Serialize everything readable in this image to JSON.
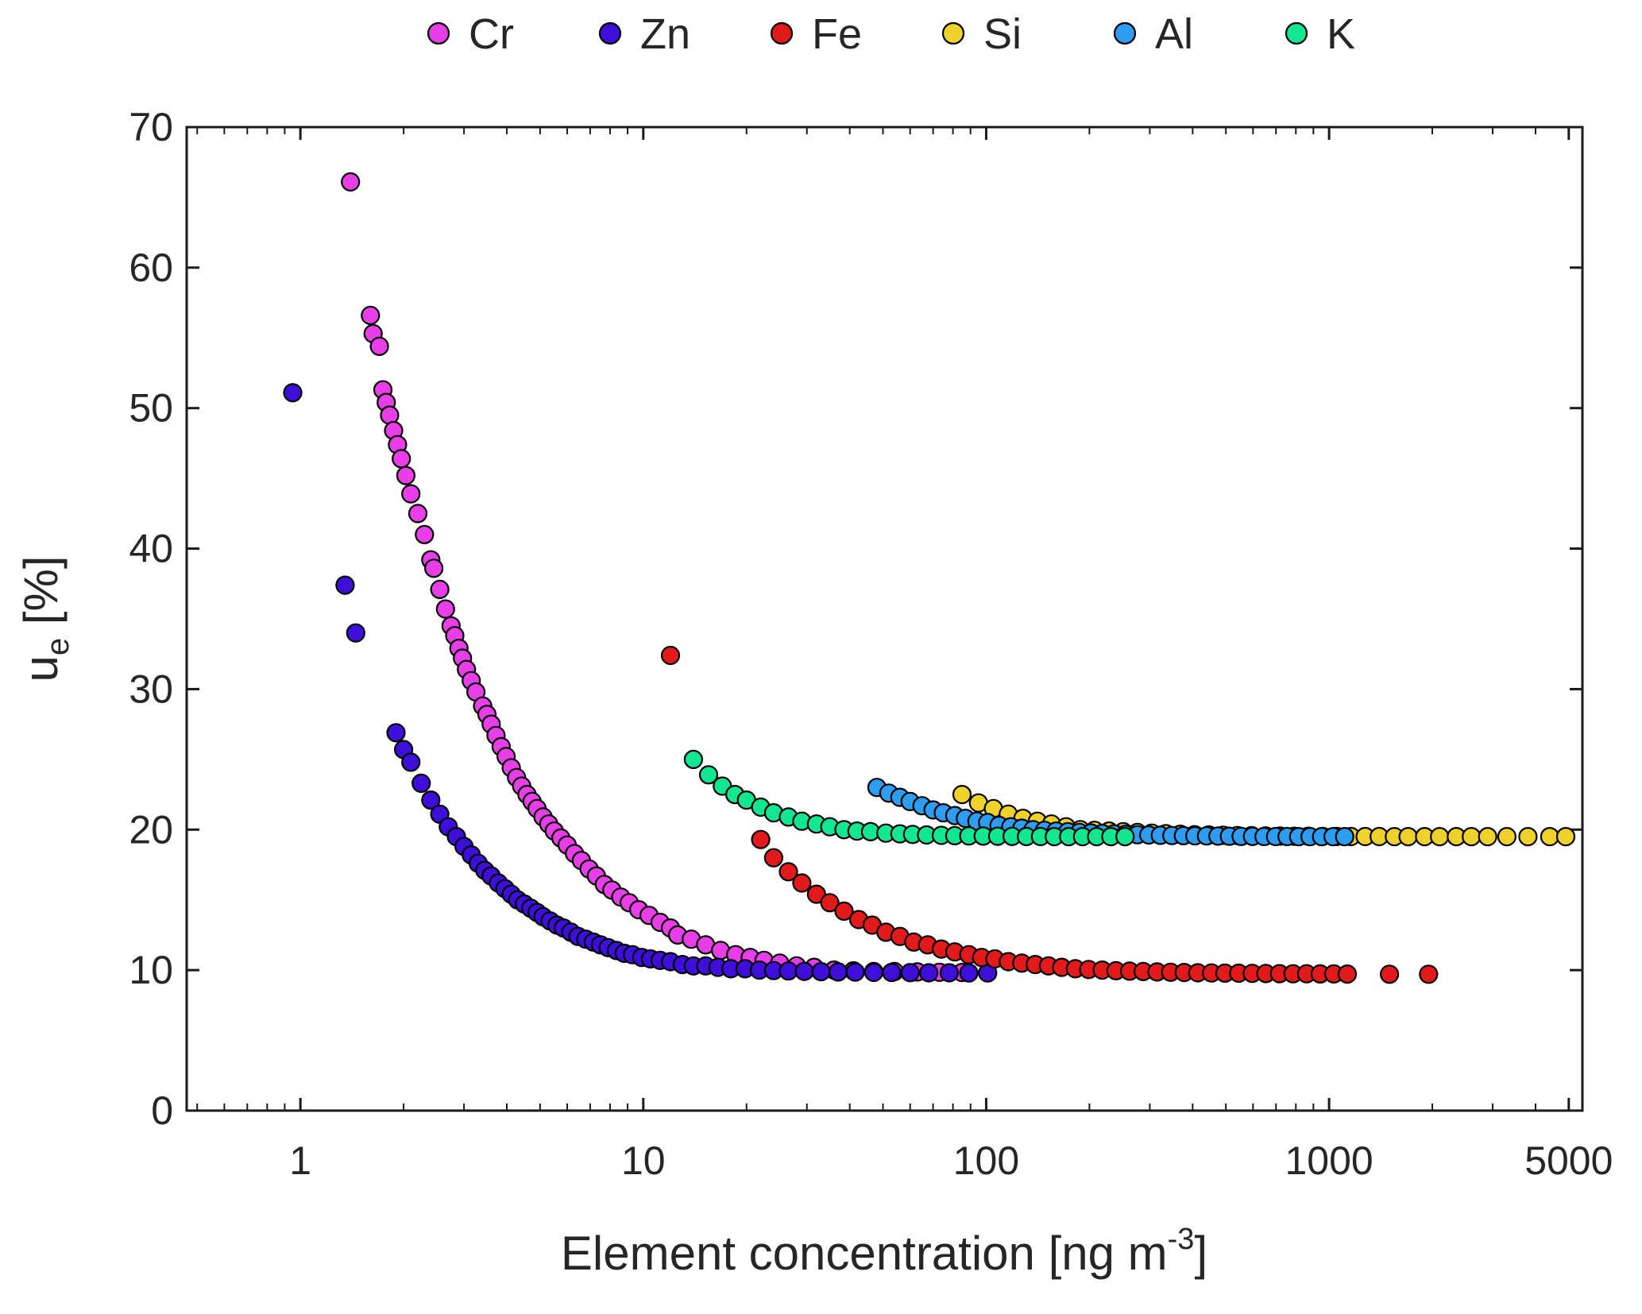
{
  "figure": {
    "background": "#ffffff",
    "axis_color": "#1a1a1a",
    "text_color": "#262626",
    "marker_edge_color": "#000000"
  },
  "chart_data": {
    "type": "scatter",
    "title": "",
    "xlabel_prefix": "Element concentration [ng m",
    "xlabel_sup": "-3",
    "xlabel_suffix": "]",
    "ylabel_main": "u",
    "ylabel_sub": "e",
    "ylabel_suffix": " [%]",
    "xscale": "log",
    "xlim": [
      0.466,
      5480
    ],
    "ylim": [
      0,
      70
    ],
    "xticks": [
      1,
      10,
      100,
      1000,
      5000
    ],
    "xtick_labels": [
      "1",
      "10",
      "100",
      "1000",
      "5000"
    ],
    "yticks": [
      0,
      10,
      20,
      30,
      40,
      50,
      60,
      70
    ],
    "ytick_labels": [
      "0",
      "10",
      "20",
      "30",
      "40",
      "50",
      "60",
      "70"
    ],
    "grid": false,
    "legend_position": "top-outside",
    "series": [
      {
        "name": "Cr",
        "label": "Cr",
        "color": "#e83ee8",
        "points": [
          [
            1.4,
            66.1
          ],
          [
            1.6,
            56.6
          ],
          [
            1.63,
            55.3
          ],
          [
            1.7,
            54.4
          ],
          [
            1.74,
            51.3
          ],
          [
            1.78,
            50.4
          ],
          [
            1.82,
            49.5
          ],
          [
            1.87,
            48.4
          ],
          [
            1.92,
            47.4
          ],
          [
            1.97,
            46.4
          ],
          [
            2.03,
            45.2
          ],
          [
            2.1,
            43.9
          ],
          [
            2.2,
            42.5
          ],
          [
            2.3,
            41
          ],
          [
            2.4,
            39.2
          ],
          [
            2.45,
            38.6
          ],
          [
            2.55,
            37.1
          ],
          [
            2.65,
            35.7
          ],
          [
            2.75,
            34.5
          ],
          [
            2.82,
            33.8
          ],
          [
            2.9,
            32.9
          ],
          [
            2.97,
            32.2
          ],
          [
            3.05,
            31.4
          ],
          [
            3.15,
            30.6
          ],
          [
            3.25,
            29.8
          ],
          [
            3.4,
            28.8
          ],
          [
            3.5,
            28.2
          ],
          [
            3.6,
            27.5
          ],
          [
            3.72,
            26.7
          ],
          [
            3.85,
            25.9
          ],
          [
            3.98,
            25.2
          ],
          [
            4.12,
            24.4
          ],
          [
            4.27,
            23.7
          ],
          [
            4.42,
            23.1
          ],
          [
            4.58,
            22.5
          ],
          [
            4.74,
            22
          ],
          [
            4.9,
            21.5
          ],
          [
            5.1,
            20.9
          ],
          [
            5.3,
            20.4
          ],
          [
            5.5,
            19.9
          ],
          [
            5.75,
            19.4
          ],
          [
            6,
            18.9
          ],
          [
            6.3,
            18.3
          ],
          [
            6.6,
            17.8
          ],
          [
            6.95,
            17.2
          ],
          [
            7.3,
            16.7
          ],
          [
            7.7,
            16.1
          ],
          [
            8.1,
            15.7
          ],
          [
            8.6,
            15.2
          ],
          [
            9.1,
            14.8
          ],
          [
            9.7,
            14.3
          ],
          [
            10.4,
            13.9
          ],
          [
            11.2,
            13.4
          ],
          [
            12,
            13
          ],
          [
            12.6,
            12.5
          ],
          [
            13.8,
            12.2
          ],
          [
            15.2,
            11.8
          ],
          [
            16.8,
            11.4
          ],
          [
            18.6,
            11.1
          ],
          [
            20.5,
            10.9
          ],
          [
            22.5,
            10.7
          ],
          [
            25,
            10.5
          ],
          [
            28,
            10.3
          ],
          [
            31.5,
            10.2
          ],
          [
            36,
            10
          ],
          [
            41,
            9.95
          ],
          [
            47,
            9.9
          ],
          [
            54,
            9.9
          ],
          [
            63,
            9.87
          ],
          [
            73,
            9.85
          ],
          [
            85,
            9.83
          ]
        ]
      },
      {
        "name": "Zn",
        "label": "Zn",
        "color": "#3d0fd9",
        "points": [
          [
            0.95,
            51.1
          ],
          [
            1.35,
            37.4
          ],
          [
            1.45,
            34
          ],
          [
            1.9,
            26.9
          ],
          [
            2,
            25.7
          ],
          [
            2.1,
            24.8
          ],
          [
            2.25,
            23.3
          ],
          [
            2.4,
            22.1
          ],
          [
            2.55,
            21.1
          ],
          [
            2.7,
            20.2
          ],
          [
            2.85,
            19.5
          ],
          [
            3,
            18.8
          ],
          [
            3.15,
            18.2
          ],
          [
            3.3,
            17.6
          ],
          [
            3.45,
            17.1
          ],
          [
            3.6,
            16.7
          ],
          [
            3.78,
            16.2
          ],
          [
            3.95,
            15.8
          ],
          [
            4.12,
            15.4
          ],
          [
            4.3,
            15
          ],
          [
            4.5,
            14.7
          ],
          [
            4.7,
            14.4
          ],
          [
            4.9,
            14.1
          ],
          [
            5.1,
            13.8
          ],
          [
            5.35,
            13.5
          ],
          [
            5.6,
            13.2
          ],
          [
            5.85,
            13
          ],
          [
            6.15,
            12.7
          ],
          [
            6.45,
            12.4
          ],
          [
            6.8,
            12.2
          ],
          [
            7.15,
            12
          ],
          [
            7.5,
            11.8
          ],
          [
            7.9,
            11.6
          ],
          [
            8.35,
            11.4
          ],
          [
            8.8,
            11.2
          ],
          [
            9.3,
            11.1
          ],
          [
            9.9,
            10.9
          ],
          [
            10.5,
            10.8
          ],
          [
            11.2,
            10.7
          ],
          [
            12,
            10.6
          ],
          [
            13,
            10.4
          ],
          [
            14,
            10.3
          ],
          [
            15.2,
            10.3
          ],
          [
            16.5,
            10.2
          ],
          [
            18,
            10.1
          ],
          [
            19.8,
            10.1
          ],
          [
            21.8,
            10
          ],
          [
            24,
            9.97
          ],
          [
            26.5,
            9.94
          ],
          [
            29.5,
            9.91
          ],
          [
            33,
            9.89
          ],
          [
            37,
            9.87
          ],
          [
            41.5,
            9.86
          ],
          [
            47,
            9.84
          ],
          [
            53,
            9.83
          ],
          [
            60,
            9.82
          ],
          [
            68,
            9.81
          ],
          [
            78,
            9.81
          ],
          [
            89,
            9.8
          ],
          [
            101,
            9.8
          ]
        ]
      },
      {
        "name": "Fe",
        "label": "Fe",
        "color": "#e31a1c",
        "points": [
          [
            12,
            32.4
          ],
          [
            22,
            19.3
          ],
          [
            24,
            18
          ],
          [
            26.5,
            17
          ],
          [
            29,
            16.2
          ],
          [
            32,
            15.4
          ],
          [
            35,
            14.8
          ],
          [
            38.5,
            14.2
          ],
          [
            42.5,
            13.6
          ],
          [
            46.5,
            13.2
          ],
          [
            51,
            12.7
          ],
          [
            56,
            12.4
          ],
          [
            61.5,
            12
          ],
          [
            67.5,
            11.8
          ],
          [
            74,
            11.5
          ],
          [
            81,
            11.3
          ],
          [
            89,
            11.1
          ],
          [
            97,
            10.9
          ],
          [
            106,
            10.8
          ],
          [
            116,
            10.6
          ],
          [
            127,
            10.5
          ],
          [
            139,
            10.4
          ],
          [
            152,
            10.3
          ],
          [
            166,
            10.2
          ],
          [
            182,
            10.1
          ],
          [
            199,
            10.05
          ],
          [
            218,
            10
          ],
          [
            239,
            9.96
          ],
          [
            262,
            9.93
          ],
          [
            287,
            9.9
          ],
          [
            315,
            9.87
          ],
          [
            345,
            9.85
          ],
          [
            378,
            9.83
          ],
          [
            414,
            9.81
          ],
          [
            454,
            9.8
          ],
          [
            497,
            9.79
          ],
          [
            545,
            9.78
          ],
          [
            597,
            9.77
          ],
          [
            654,
            9.76
          ],
          [
            717,
            9.75
          ],
          [
            785,
            9.74
          ],
          [
            860,
            9.74
          ],
          [
            942,
            9.73
          ],
          [
            1032,
            9.73
          ],
          [
            1130,
            9.72
          ],
          [
            1500,
            9.71
          ],
          [
            1950,
            9.71
          ]
        ]
      },
      {
        "name": "Si",
        "label": "Si",
        "color": "#eed22b",
        "points": [
          [
            85,
            22.5
          ],
          [
            95,
            21.9
          ],
          [
            105,
            21.5
          ],
          [
            116,
            21.1
          ],
          [
            128,
            20.8
          ],
          [
            141,
            20.6
          ],
          [
            155,
            20.4
          ],
          [
            171,
            20.2
          ],
          [
            188,
            20
          ],
          [
            207,
            19.95
          ],
          [
            228,
            19.9
          ],
          [
            251,
            19.85
          ],
          [
            276,
            19.8
          ],
          [
            304,
            19.75
          ],
          [
            334,
            19.71
          ],
          [
            368,
            19.67
          ],
          [
            405,
            19.64
          ],
          [
            446,
            19.62
          ],
          [
            491,
            19.6
          ],
          [
            540,
            19.58
          ],
          [
            594,
            19.57
          ],
          [
            653,
            19.55
          ],
          [
            719,
            19.54
          ],
          [
            791,
            19.53
          ],
          [
            870,
            19.53
          ],
          [
            957,
            19.52
          ],
          [
            1053,
            19.52
          ],
          [
            1158,
            19.51
          ],
          [
            1274,
            19.51
          ],
          [
            1400,
            19.51
          ],
          [
            1550,
            19.5
          ],
          [
            1700,
            19.5
          ],
          [
            1900,
            19.5
          ],
          [
            2100,
            19.5
          ],
          [
            2350,
            19.5
          ],
          [
            2600,
            19.5
          ],
          [
            2900,
            19.5
          ],
          [
            3300,
            19.5
          ],
          [
            3800,
            19.5
          ],
          [
            4400,
            19.5
          ],
          [
            4900,
            19.5
          ]
        ]
      },
      {
        "name": "Al",
        "label": "Al",
        "color": "#2e9df0",
        "points": [
          [
            48,
            23
          ],
          [
            52,
            22.6
          ],
          [
            56,
            22.3
          ],
          [
            60,
            22
          ],
          [
            65,
            21.7
          ],
          [
            70,
            21.4
          ],
          [
            75,
            21.2
          ],
          [
            81,
            21
          ],
          [
            87,
            20.8
          ],
          [
            94,
            20.6
          ],
          [
            101,
            20.5
          ],
          [
            109,
            20.3
          ],
          [
            118,
            20.2
          ],
          [
            127,
            20.1
          ],
          [
            137,
            20
          ],
          [
            148,
            19.95
          ],
          [
            160,
            19.9
          ],
          [
            173,
            19.85
          ],
          [
            187,
            19.8
          ],
          [
            202,
            19.76
          ],
          [
            218,
            19.73
          ],
          [
            236,
            19.7
          ],
          [
            255,
            19.67
          ],
          [
            276,
            19.64
          ],
          [
            298,
            19.62
          ],
          [
            322,
            19.6
          ],
          [
            348,
            19.58
          ],
          [
            376,
            19.57
          ],
          [
            406,
            19.56
          ],
          [
            439,
            19.55
          ],
          [
            474,
            19.54
          ],
          [
            512,
            19.53
          ],
          [
            554,
            19.52
          ],
          [
            598,
            19.52
          ],
          [
            646,
            19.51
          ],
          [
            698,
            19.51
          ],
          [
            754,
            19.51
          ],
          [
            815,
            19.5
          ],
          [
            880,
            19.5
          ],
          [
            951,
            19.5
          ],
          [
            1027,
            19.5
          ],
          [
            1110,
            19.5
          ]
        ]
      },
      {
        "name": "K",
        "label": "K",
        "color": "#12e690",
        "points": [
          [
            14,
            25
          ],
          [
            15.5,
            23.9
          ],
          [
            17,
            23.1
          ],
          [
            18.5,
            22.5
          ],
          [
            20,
            22.1
          ],
          [
            22,
            21.6
          ],
          [
            24,
            21.2
          ],
          [
            26.5,
            20.9
          ],
          [
            29,
            20.6
          ],
          [
            32,
            20.4
          ],
          [
            35,
            20.2
          ],
          [
            38.5,
            20
          ],
          [
            42,
            19.9
          ],
          [
            46,
            19.85
          ],
          [
            51,
            19.75
          ],
          [
            56,
            19.7
          ],
          [
            61,
            19.66
          ],
          [
            67,
            19.62
          ],
          [
            74,
            19.59
          ],
          [
            81,
            19.57
          ],
          [
            89,
            19.55
          ],
          [
            98,
            19.54
          ],
          [
            108,
            19.53
          ],
          [
            119,
            19.52
          ],
          [
            131,
            19.51
          ],
          [
            144,
            19.51
          ],
          [
            158,
            19.5
          ],
          [
            174,
            19.5
          ],
          [
            191,
            19.5
          ],
          [
            210,
            19.5
          ],
          [
            231,
            19.5
          ],
          [
            254,
            19.5
          ]
        ]
      }
    ]
  }
}
